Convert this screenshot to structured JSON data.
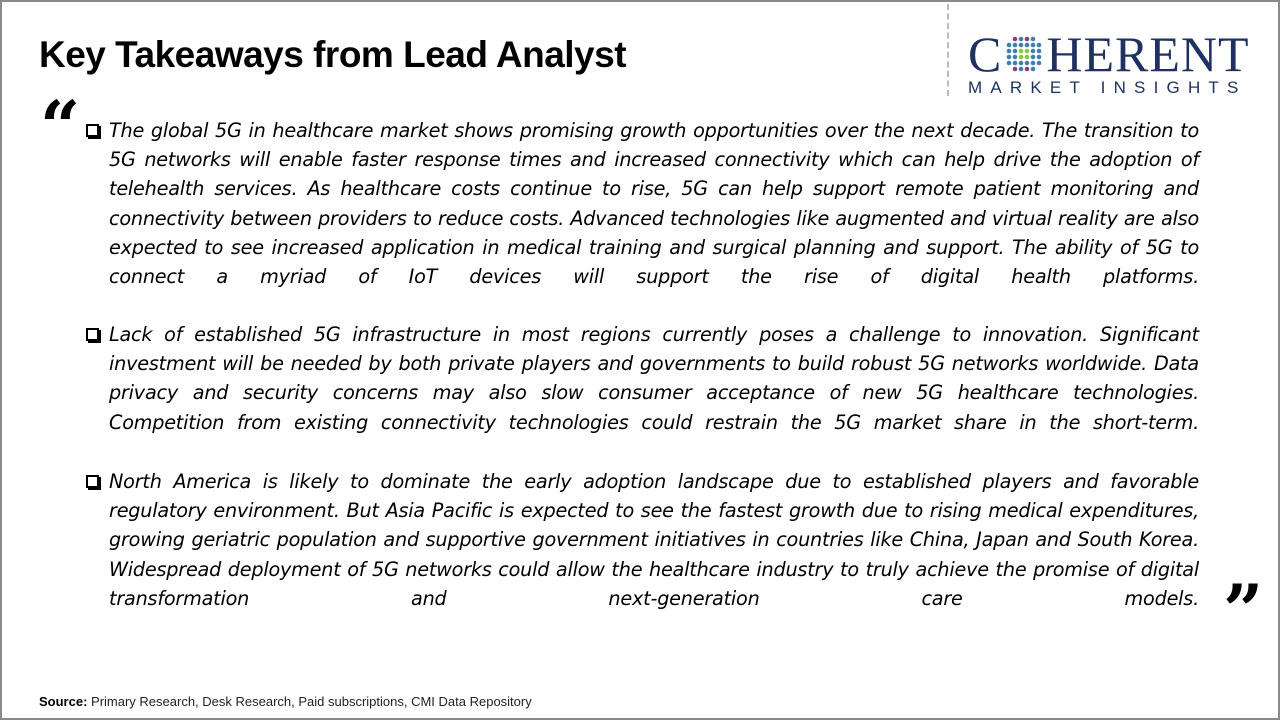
{
  "title": "Key Takeaways from Lead Analyst",
  "logo": {
    "main_left": "C",
    "main_right": "HERENT",
    "sub": "MARKET INSIGHTS",
    "colors": {
      "navy": "#1e3160",
      "green": "#8cc63f",
      "purple": "#8e3b7a",
      "blue": "#3c7fb0"
    }
  },
  "icons": {
    "open": "quote-open-icon",
    "close": "quote-close-icon",
    "bullet": "checkbox-bullet-icon"
  },
  "quote_open": "“",
  "quote_close": "”",
  "takeaways": [
    "The global 5G in healthcare market shows promising growth opportunities over the next decade. The transition to 5G networks will enable faster response times and increased connectivity which can help drive the adoption of telehealth services. As healthcare costs continue to rise, 5G can help support remote patient monitoring and connectivity between providers to reduce costs. Advanced technologies like augmented and virtual reality are also expected to see increased application in medical training and surgical planning and support. The ability of 5G to connect a myriad of IoT devices will support the rise of digital health platforms.",
    "Lack of established 5G infrastructure in most regions currently poses a challenge to innovation. Significant investment will be needed by both private players and governments to build robust 5G networks worldwide. Data privacy and security concerns may also slow consumer acceptance of new 5G healthcare technologies. Competition from existing connectivity technologies could restrain the 5G market share in the short-term.",
    "North America is likely to dominate the early adoption landscape due to established players and favorable regulatory environment. But Asia Pacific is expected to see the fastest growth due to rising medical expenditures, growing geriatric population and supportive government initiatives in countries like China, Japan and South Korea. Widespread deployment of 5G networks could allow the healthcare industry to truly achieve the promise of digital transformation and next-generation care models."
  ],
  "source": {
    "label": "Source:",
    "text": " Primary Research, Desk Research, Paid subscriptions, CMI Data Repository"
  }
}
